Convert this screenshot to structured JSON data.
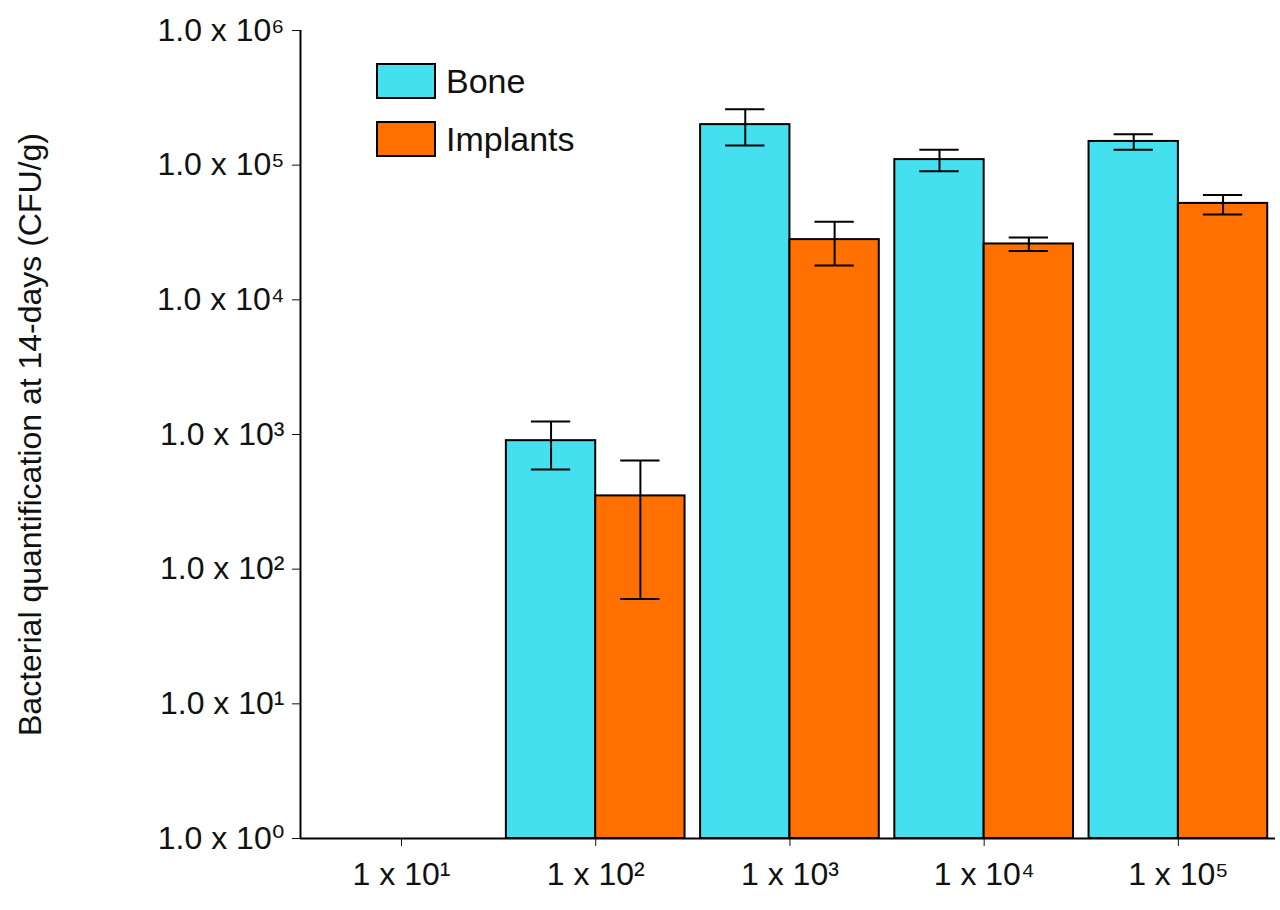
{
  "chart_data": {
    "type": "bar",
    "y_label": "Bacterial quantification at 14-days (CFU/g)",
    "categories": [
      "1 x 10¹",
      "1 x 10²",
      "1 x 10³",
      "1 x 10⁴",
      "1 x 10⁵"
    ],
    "series": [
      {
        "name": "Bone",
        "color": "#45e0f0",
        "values": [
          null,
          900,
          200000,
          110000,
          150000
        ],
        "errors": [
          null,
          [
            550,
            1250
          ],
          [
            140000,
            260000
          ],
          [
            90000,
            130000
          ],
          [
            130000,
            170000
          ]
        ]
      },
      {
        "name": "Implants",
        "color": "#ff7000",
        "values": [
          null,
          350,
          28000,
          26000,
          52000
        ],
        "errors": [
          null,
          [
            60,
            640
          ],
          [
            18000,
            38000
          ],
          [
            23000,
            29000
          ],
          [
            43000,
            60000
          ]
        ]
      }
    ],
    "log": "y",
    "ylim": [
      1,
      1000000
    ],
    "yticks": [
      {
        "value": 1,
        "label": "1.0 x 10⁰"
      },
      {
        "value": 10,
        "label": "1.0 x 10¹"
      },
      {
        "value": 100,
        "label": "1.0 x 10²"
      },
      {
        "value": 1000,
        "label": "1.0 x 10³"
      },
      {
        "value": 10000,
        "label": "1.0 x 10⁴"
      },
      {
        "value": 100000,
        "label": "1.0 x 10⁵"
      },
      {
        "value": 1000000,
        "label": "1.0 x 10⁶"
      }
    ],
    "grid": false,
    "legend": "top-left"
  }
}
